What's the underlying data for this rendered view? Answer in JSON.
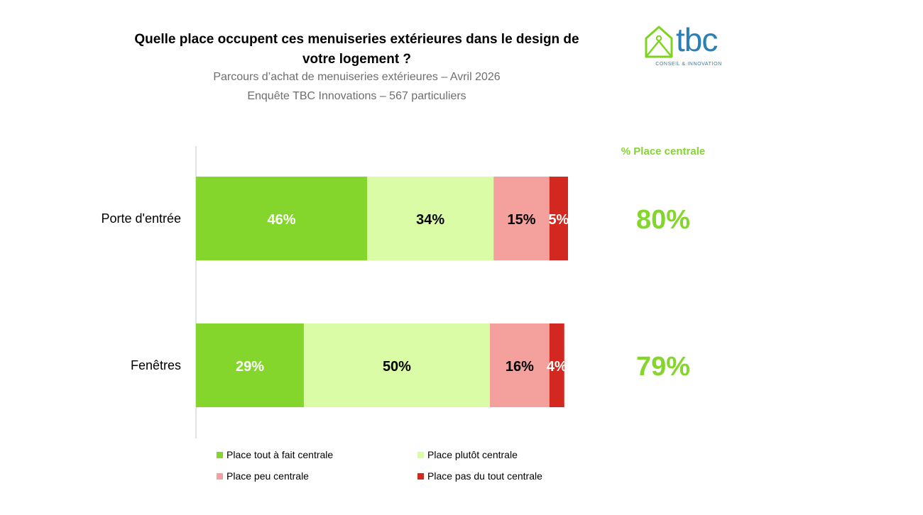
{
  "header": {
    "title_line1": "Quelle place occupent ces menuiseries extérieures dans le design de",
    "title_line2": "votre logement ?",
    "subtitle_line1": "Parcours d’achat de menuiseries extérieures – Avril 2026",
    "subtitle_line2": "Enquête TBC Innovations – 567 particuliers"
  },
  "logo": {
    "wordmark": "tbc",
    "tagline": "CONSEIL & INNOVATION",
    "color": "#2b7fb8",
    "accent": "#7ed321"
  },
  "chart_data": {
    "type": "bar",
    "orientation": "horizontal",
    "stacked": true,
    "categories": [
      "Porte d'entrée",
      "Fenêtres"
    ],
    "series": [
      {
        "name": "Place tout à fait centrale",
        "values": [
          46,
          29
        ],
        "color": "#84d62c",
        "label_color": "#ffffff"
      },
      {
        "name": "Place plutôt centrale",
        "values": [
          34,
          50
        ],
        "color": "#dafca7",
        "label_color": "#000000"
      },
      {
        "name": "Place peu centrale",
        "values": [
          15,
          16
        ],
        "color": "#f4a09d",
        "label_color": "#000000"
      },
      {
        "name": "Place pas du tout centrale",
        "values": [
          5,
          4
        ],
        "color": "#d3281f",
        "label_color": "#ffffff"
      }
    ],
    "value_suffix": "%",
    "xlim": [
      0,
      100
    ],
    "legend_placement": "bottom",
    "side_column": {
      "header": "% Place centrale",
      "values": [
        "80%",
        "79%"
      ],
      "color": "#84d62c"
    }
  }
}
